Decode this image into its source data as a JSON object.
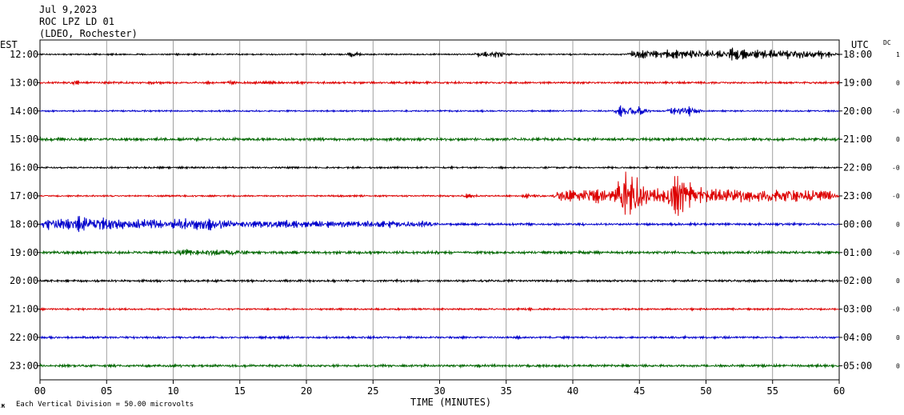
{
  "header": {
    "date": "Jul 9,2023",
    "station": "ROC LPZ LD 01",
    "network": "(LDEO, Rochester)"
  },
  "left_axis_label": "EST",
  "right_axis_label": "UTC",
  "dc_label": "DC",
  "footer": {
    "scale_note": "Each Vertical Division =   50.00 microvolts",
    "corner_mark": "ж"
  },
  "chart_data": {
    "type": "line",
    "xlabel": "TIME (MINUTES)",
    "xlim": [
      0,
      60
    ],
    "x_ticks": [
      "00",
      "05",
      "10",
      "15",
      "20",
      "25",
      "30",
      "35",
      "40",
      "45",
      "50",
      "55",
      "60"
    ],
    "grid": true,
    "trace_colors": [
      "#000000",
      "#dd0000",
      "#0000cc",
      "#006600"
    ],
    "rows": [
      {
        "est": "12:00",
        "utc": "18:00",
        "dc": "1",
        "color": "#000000",
        "noise": 0.8,
        "events": [
          {
            "start": 23,
            "end": 24.5,
            "amp": 2.5
          },
          {
            "start": 32.5,
            "end": 35.5,
            "amp": 3
          },
          {
            "start": 44,
            "end": 60,
            "amp": 4
          },
          {
            "start": 51.5,
            "end": 53.5,
            "amp": 7
          }
        ]
      },
      {
        "est": "13:00",
        "utc": "19:00",
        "dc": "0",
        "color": "#dd0000",
        "noise": 1.2,
        "events": [
          {
            "start": 2,
            "end": 3.5,
            "amp": 2
          },
          {
            "start": 8,
            "end": 9,
            "amp": 2
          },
          {
            "start": 14,
            "end": 15,
            "amp": 2
          }
        ]
      },
      {
        "est": "14:00",
        "utc": "20:00",
        "dc": "-0",
        "color": "#0000cc",
        "noise": 0.9,
        "events": [
          {
            "start": 43,
            "end": 46,
            "amp": 5
          },
          {
            "start": 47,
            "end": 50,
            "amp": 4
          }
        ]
      },
      {
        "est": "15:00",
        "utc": "21:00",
        "dc": "0",
        "color": "#006600",
        "noise": 1.6,
        "events": []
      },
      {
        "est": "16:00",
        "utc": "22:00",
        "dc": "-0",
        "color": "#000000",
        "noise": 1.0,
        "events": []
      },
      {
        "est": "17:00",
        "utc": "23:00",
        "dc": "-0",
        "color": "#dd0000",
        "noise": 0.9,
        "events": [
          {
            "start": 31.5,
            "end": 33,
            "amp": 2
          },
          {
            "start": 36,
            "end": 38,
            "amp": 2
          },
          {
            "start": 38.5,
            "end": 60,
            "amp": 7
          },
          {
            "start": 43,
            "end": 46,
            "amp": 23
          },
          {
            "start": 47,
            "end": 49.5,
            "amp": 22
          }
        ]
      },
      {
        "est": "18:00",
        "utc": "00:00",
        "dc": "0",
        "color": "#0000cc",
        "noise": 1.3,
        "events": [
          {
            "start": 0,
            "end": 15,
            "amp": 5
          },
          {
            "start": 2.5,
            "end": 4.5,
            "amp": 8
          },
          {
            "start": 15,
            "end": 30,
            "amp": 2.5
          }
        ]
      },
      {
        "est": "19:00",
        "utc": "01:00",
        "dc": "-0",
        "color": "#006600",
        "noise": 1.5,
        "events": [
          {
            "start": 10,
            "end": 16,
            "amp": 2
          }
        ]
      },
      {
        "est": "20:00",
        "utc": "02:00",
        "dc": "0",
        "color": "#000000",
        "noise": 1.2,
        "events": []
      },
      {
        "est": "21:00",
        "utc": "03:00",
        "dc": "-0",
        "color": "#dd0000",
        "noise": 1.0,
        "events": []
      },
      {
        "est": "22:00",
        "utc": "04:00",
        "dc": "0",
        "color": "#0000cc",
        "noise": 1.2,
        "events": []
      },
      {
        "est": "23:00",
        "utc": "05:00",
        "dc": "0",
        "color": "#006600",
        "noise": 1.4,
        "events": []
      }
    ]
  }
}
